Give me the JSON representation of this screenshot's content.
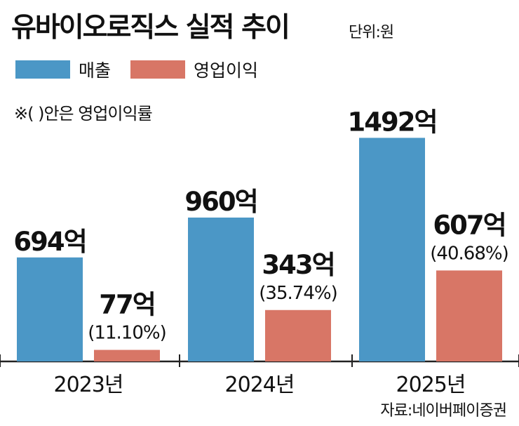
{
  "header": {
    "title": "유바이오로직스 실적 추이",
    "unit": "단위:원"
  },
  "legend": [
    {
      "label": "매출",
      "color": "#4b97c6"
    },
    {
      "label": "영업이익",
      "color": "#d87666"
    }
  ],
  "note": "※( )안은 영업이익률",
  "source": "자료:네이버페이증권",
  "chart_data": {
    "type": "bar",
    "title": "유바이오로직스 실적 추이",
    "unit": "원",
    "categories": [
      "2023년",
      "2024년",
      "2025년"
    ],
    "series": [
      {
        "name": "매출",
        "color": "#4b97c6",
        "values": [
          694,
          960,
          1492
        ],
        "labels": [
          "694억",
          "960억",
          "1492억"
        ]
      },
      {
        "name": "영업이익",
        "color": "#d87666",
        "values": [
          77,
          343,
          607
        ],
        "labels": [
          "77억",
          "343억",
          "607억"
        ],
        "margins": [
          "(11.10%)",
          "(35.74%)",
          "(40.68%)"
        ]
      }
    ],
    "ylim": [
      0,
      1700
    ],
    "grid": false,
    "legend_position": "top-left"
  }
}
